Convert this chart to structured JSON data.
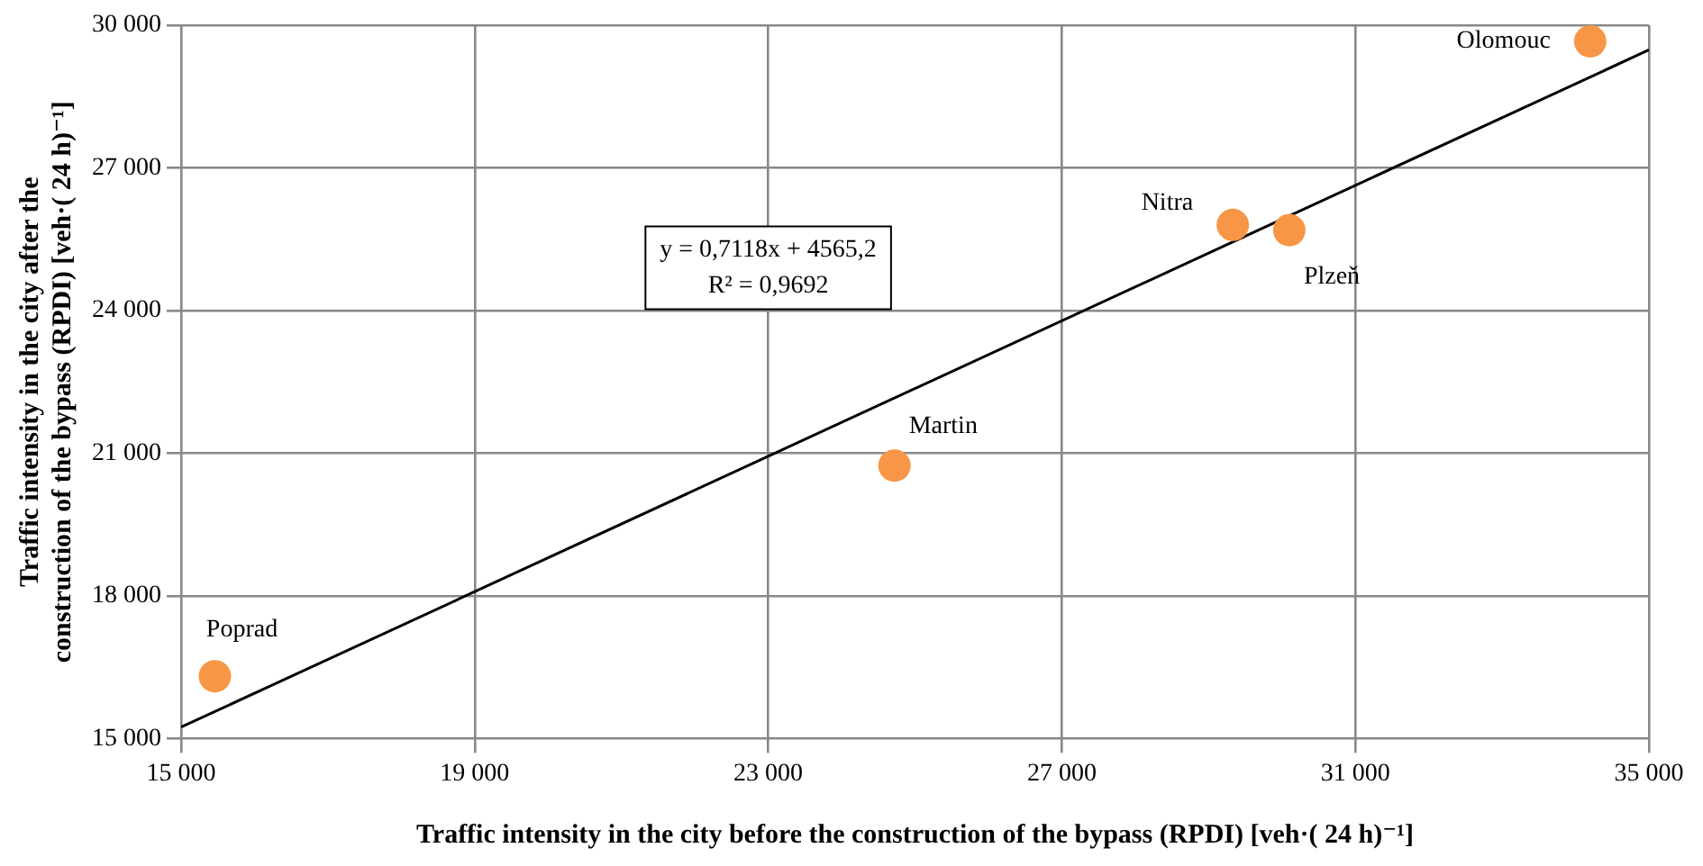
{
  "chart_data": {
    "type": "scatter",
    "xlabel": "Traffic intensity in the city before the construction of the bypass (RPDI) [veh·( 24 h)⁻¹]",
    "ylabel": "Traffic intensity in the city after the construction of the bypass (RPDI) [veh·( 24 h)⁻¹]",
    "xlim": [
      15000,
      35000
    ],
    "xticks": [
      {
        "value": 15000,
        "label": "15 000"
      },
      {
        "value": 19000,
        "label": "19 000"
      },
      {
        "value": 23000,
        "label": "23 000"
      },
      {
        "value": 27000,
        "label": "27 000"
      },
      {
        "value": 31000,
        "label": "31 000"
      },
      {
        "value": 35000,
        "label": "35 000"
      }
    ],
    "ylim": [
      15000,
      30000
    ],
    "yticks": [
      {
        "value": 15000,
        "label": "15 000"
      },
      {
        "value": 18000,
        "label": "18 000"
      },
      {
        "value": 21000,
        "label": "21 000"
      },
      {
        "value": 24000,
        "label": "24 000"
      },
      {
        "value": 27000,
        "label": "27 000"
      },
      {
        "value": 30000,
        "label": "30 000"
      }
    ],
    "grid": true,
    "marker": "circle",
    "legend": false,
    "series": [
      {
        "color": "#f79646",
        "x": [
          15460,
          24720,
          29330,
          30100,
          34200
        ],
        "values": [
          16310,
          20740,
          25800,
          25690,
          29660
        ]
      },
      {
        "type": "line",
        "color": "#000000",
        "marker": "none",
        "x": [
          15000,
          35000
        ],
        "values": [
          15240,
          29480
        ]
      }
    ],
    "annotations": [
      "y = 0,7118x + 4565,2",
      "R² = 0,9692",
      {
        "text": "Poprad",
        "x": 15460,
        "y": 16310
      },
      {
        "text": "Martin",
        "x": 24720,
        "y": 20740
      },
      {
        "text": "Nitra",
        "x": 29330,
        "y": 25800
      },
      {
        "text": "Plzeň",
        "x": 30100,
        "y": 25690
      },
      {
        "text": "Olomouc",
        "x": 34200,
        "y": 29660
      }
    ]
  }
}
